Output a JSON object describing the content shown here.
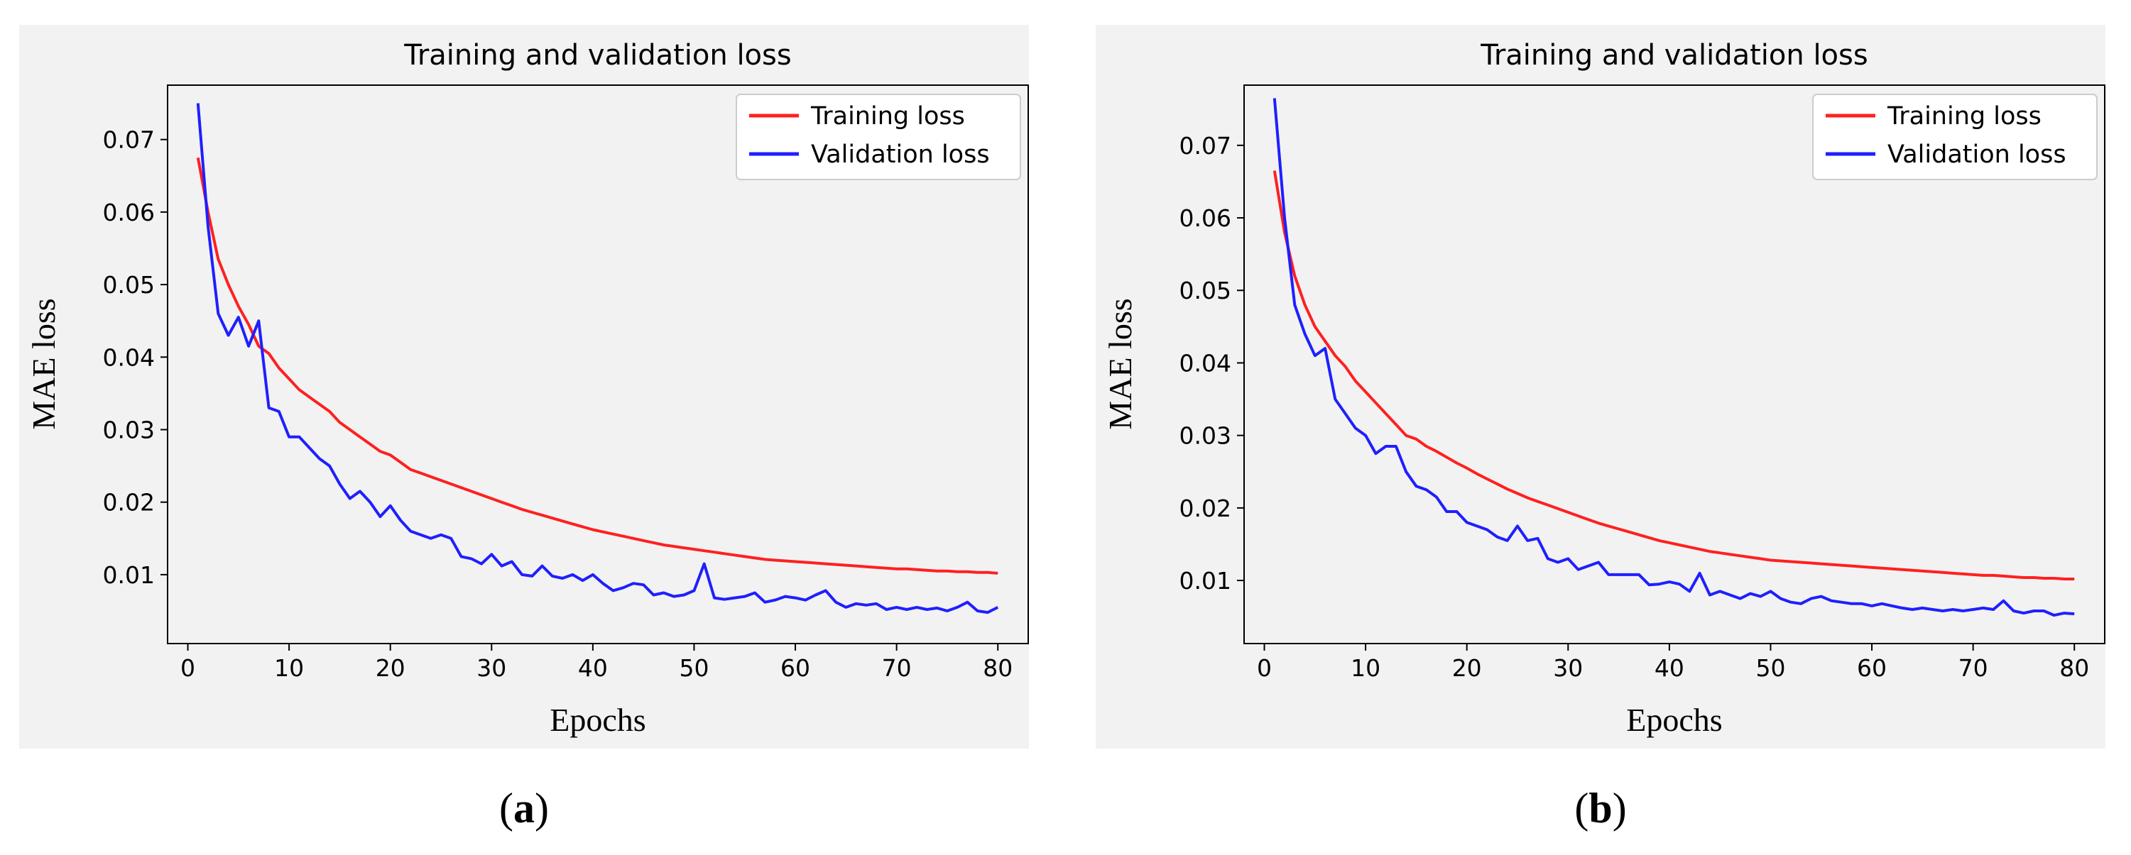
{
  "colors": {
    "train": "#ff2020",
    "val": "#1f1fff",
    "background": "#f2f2f2"
  },
  "chart_data": [
    {
      "panel": "a",
      "type": "line",
      "title": "Training and validation loss",
      "xlabel": "Epochs",
      "ylabel": "MAE loss",
      "xlim": [
        -2,
        83
      ],
      "ylim": [
        0.0005,
        0.0775
      ],
      "xticks": [
        "0",
        "10",
        "20",
        "30",
        "40",
        "50",
        "60",
        "70",
        "80"
      ],
      "yticks": [
        "0.01",
        "0.02",
        "0.03",
        "0.04",
        "0.05",
        "0.06",
        "0.07"
      ],
      "legend": "top-right",
      "series": [
        {
          "name": "Training loss",
          "values": [
            0.0675,
            0.06,
            0.0535,
            0.05,
            0.047,
            0.0445,
            0.0415,
            0.0405,
            0.0385,
            0.037,
            0.0355,
            0.0345,
            0.0335,
            0.0325,
            0.031,
            0.03,
            0.029,
            0.028,
            0.027,
            0.0265,
            0.0255,
            0.0245,
            0.024,
            0.0235,
            0.023,
            0.0225,
            0.022,
            0.0215,
            0.021,
            0.0205,
            0.02,
            0.0195,
            0.019,
            0.0186,
            0.0182,
            0.0178,
            0.0174,
            0.017,
            0.0166,
            0.0162,
            0.0159,
            0.0156,
            0.0153,
            0.015,
            0.0147,
            0.0144,
            0.0141,
            0.0139,
            0.0137,
            0.0135,
            0.0133,
            0.0131,
            0.0129,
            0.0127,
            0.0125,
            0.0123,
            0.0121,
            0.012,
            0.0119,
            0.0118,
            0.0117,
            0.0116,
            0.0115,
            0.0114,
            0.0113,
            0.0112,
            0.0111,
            0.011,
            0.0109,
            0.0108,
            0.0108,
            0.0107,
            0.0106,
            0.0105,
            0.0105,
            0.0104,
            0.0104,
            0.0103,
            0.0103,
            0.0102
          ]
        },
        {
          "name": "Validation loss",
          "values": [
            0.075,
            0.058,
            0.046,
            0.043,
            0.0455,
            0.0415,
            0.045,
            0.033,
            0.0325,
            0.029,
            0.029,
            0.0275,
            0.026,
            0.025,
            0.0225,
            0.0205,
            0.0215,
            0.02,
            0.018,
            0.0195,
            0.0175,
            0.016,
            0.0155,
            0.015,
            0.0155,
            0.015,
            0.0125,
            0.0122,
            0.0115,
            0.0128,
            0.0112,
            0.0118,
            0.01,
            0.0098,
            0.0112,
            0.0098,
            0.0095,
            0.01,
            0.0092,
            0.01,
            0.0088,
            0.0078,
            0.0082,
            0.0088,
            0.0086,
            0.0072,
            0.0075,
            0.007,
            0.0072,
            0.0078,
            0.0115,
            0.0068,
            0.0066,
            0.0068,
            0.007,
            0.0075,
            0.0062,
            0.0065,
            0.007,
            0.0068,
            0.0065,
            0.0072,
            0.0078,
            0.0062,
            0.0055,
            0.006,
            0.0058,
            0.006,
            0.0052,
            0.0055,
            0.0052,
            0.0055,
            0.0052,
            0.0054,
            0.005,
            0.0055,
            0.0062,
            0.005,
            0.0048,
            0.0055
          ]
        }
      ]
    },
    {
      "panel": "b",
      "type": "line",
      "title": "Training and validation loss",
      "xlabel": "Epochs",
      "ylabel": "MAE loss",
      "xlim": [
        -2,
        83
      ],
      "ylim": [
        0.0013,
        0.0783
      ],
      "xticks": [
        "0",
        "10",
        "20",
        "30",
        "40",
        "50",
        "60",
        "70",
        "80"
      ],
      "yticks": [
        "0.01",
        "0.02",
        "0.03",
        "0.04",
        "0.05",
        "0.06",
        "0.07"
      ],
      "legend": "top-right",
      "series": [
        {
          "name": "Training loss",
          "values": [
            0.0665,
            0.058,
            0.052,
            0.048,
            0.045,
            0.043,
            0.041,
            0.0395,
            0.0375,
            0.036,
            0.0345,
            0.033,
            0.0315,
            0.03,
            0.0295,
            0.0285,
            0.0278,
            0.027,
            0.0262,
            0.0255,
            0.0247,
            0.024,
            0.0233,
            0.0226,
            0.022,
            0.0214,
            0.0209,
            0.0204,
            0.0199,
            0.0194,
            0.0189,
            0.0184,
            0.0179,
            0.0175,
            0.0171,
            0.0167,
            0.0163,
            0.0159,
            0.0155,
            0.0152,
            0.0149,
            0.0146,
            0.0143,
            0.014,
            0.0138,
            0.0136,
            0.0134,
            0.0132,
            0.013,
            0.0128,
            0.0127,
            0.0126,
            0.0125,
            0.0124,
            0.0123,
            0.0122,
            0.0121,
            0.012,
            0.0119,
            0.0118,
            0.0117,
            0.0116,
            0.0115,
            0.0114,
            0.0113,
            0.0112,
            0.0111,
            0.011,
            0.0109,
            0.0108,
            0.0107,
            0.0107,
            0.0106,
            0.0105,
            0.0104,
            0.0104,
            0.0103,
            0.0103,
            0.0102,
            0.0102
          ]
        },
        {
          "name": "Validation loss",
          "values": [
            0.0765,
            0.06,
            0.048,
            0.044,
            0.041,
            0.042,
            0.035,
            0.033,
            0.031,
            0.03,
            0.0275,
            0.0285,
            0.0285,
            0.025,
            0.023,
            0.0225,
            0.0215,
            0.0195,
            0.0195,
            0.018,
            0.0175,
            0.017,
            0.016,
            0.0155,
            0.0175,
            0.0155,
            0.0158,
            0.013,
            0.0125,
            0.013,
            0.0115,
            0.012,
            0.0125,
            0.0108,
            0.0108,
            0.0108,
            0.0108,
            0.0094,
            0.0095,
            0.0098,
            0.0095,
            0.0085,
            0.011,
            0.008,
            0.0085,
            0.008,
            0.0075,
            0.0082,
            0.0078,
            0.0085,
            0.0075,
            0.007,
            0.0068,
            0.0075,
            0.0078,
            0.0072,
            0.007,
            0.0068,
            0.0068,
            0.0065,
            0.0068,
            0.0065,
            0.0062,
            0.006,
            0.0062,
            0.006,
            0.0058,
            0.006,
            0.0058,
            0.006,
            0.0062,
            0.006,
            0.0072,
            0.0058,
            0.0055,
            0.0058,
            0.0058,
            0.0052,
            0.0055,
            0.0054
          ]
        }
      ]
    }
  ],
  "panel_labels": [
    {
      "open": "(",
      "letter": "a",
      "close": ")"
    },
    {
      "open": "(",
      "letter": "b",
      "close": ")"
    }
  ]
}
